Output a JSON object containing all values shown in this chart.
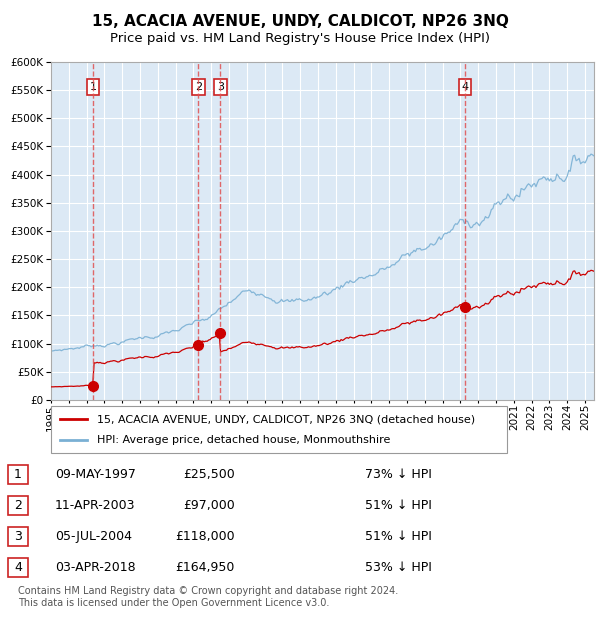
{
  "title": "15, ACACIA AVENUE, UNDY, CALDICOT, NP26 3NQ",
  "subtitle": "Price paid vs. HM Land Registry's House Price Index (HPI)",
  "ylim": [
    0,
    600000
  ],
  "yticks": [
    0,
    50000,
    100000,
    150000,
    200000,
    250000,
    300000,
    350000,
    400000,
    450000,
    500000,
    550000,
    600000
  ],
  "xlim_start": 1995.0,
  "xlim_end": 2025.5,
  "plot_bg_color": "#dce9f5",
  "grid_color": "#ffffff",
  "sale_dates": [
    1997.36,
    2003.28,
    2004.51,
    2018.26
  ],
  "sale_prices": [
    25500,
    97000,
    118000,
    164950
  ],
  "sale_labels": [
    "1",
    "2",
    "3",
    "4"
  ],
  "vline_color": "#e05050",
  "dot_color": "#cc0000",
  "line_color_property": "#cc0000",
  "line_color_hpi": "#7ab0d4",
  "legend_label_property": "15, ACACIA AVENUE, UNDY, CALDICOT, NP26 3NQ (detached house)",
  "legend_label_hpi": "HPI: Average price, detached house, Monmouthshire",
  "table_rows": [
    [
      "1",
      "09-MAY-1997",
      "£25,500",
      "73% ↓ HPI"
    ],
    [
      "2",
      "11-APR-2003",
      "£97,000",
      "51% ↓ HPI"
    ],
    [
      "3",
      "05-JUL-2004",
      "£118,000",
      "51% ↓ HPI"
    ],
    [
      "4",
      "03-APR-2018",
      "£164,950",
      "53% ↓ HPI"
    ]
  ],
  "footnote": "Contains HM Land Registry data © Crown copyright and database right 2024.\nThis data is licensed under the Open Government Licence v3.0.",
  "title_fontsize": 11,
  "subtitle_fontsize": 9.5,
  "tick_fontsize": 7.5,
  "legend_fontsize": 8,
  "table_fontsize": 9
}
